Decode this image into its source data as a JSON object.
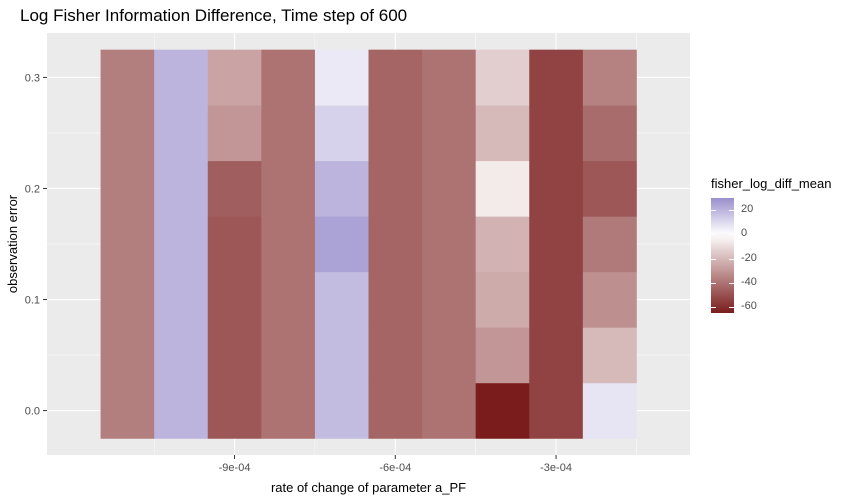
{
  "chart_data": {
    "type": "heatmap",
    "title": "Log Fisher Information Difference, Time step of 600",
    "xlabel": "rate of change of parameter a_PF",
    "ylabel": "observation error",
    "x_ticks": [
      {
        "value": -0.0009,
        "label": "-9e-04"
      },
      {
        "value": -0.0006,
        "label": "-6e-04"
      },
      {
        "value": -0.0003,
        "label": "-3e-04"
      }
    ],
    "y_ticks": [
      {
        "value": 0.0,
        "label": "0.0"
      },
      {
        "value": 0.1,
        "label": "0.1"
      },
      {
        "value": 0.2,
        "label": "0.2"
      },
      {
        "value": 0.3,
        "label": "0.3"
      }
    ],
    "xlim": [
      -0.00125,
      -5e-05
    ],
    "ylim": [
      -0.04,
      0.34
    ],
    "x": [
      -0.0011,
      -0.001,
      -0.0009,
      -0.0008,
      -0.0007,
      -0.0006,
      -0.0005,
      -0.0004,
      -0.0003,
      -0.0002
    ],
    "y": [
      0.0,
      0.05,
      0.1,
      0.15,
      0.2,
      0.25,
      0.3
    ],
    "values": [
      [
        -37,
        20,
        -48,
        -40,
        18,
        -44,
        -40,
        -68,
        -54,
        7
      ],
      [
        -37,
        20,
        -48,
        -40,
        18,
        -44,
        -40,
        -30,
        -54,
        -20
      ],
      [
        -37,
        20,
        -48,
        -40,
        18,
        -44,
        -40,
        -24,
        -54,
        -32
      ],
      [
        -37,
        20,
        -48,
        -40,
        25,
        -44,
        -40,
        -22,
        -54,
        -38
      ],
      [
        -37,
        20,
        -46,
        -40,
        20,
        -44,
        -40,
        -6,
        -54,
        -48
      ],
      [
        -37,
        20,
        -30,
        -40,
        12,
        -44,
        -40,
        -20,
        -54,
        -42
      ],
      [
        -37,
        20,
        -26,
        -40,
        6,
        -44,
        -40,
        -14,
        -54,
        -36
      ]
    ],
    "color_scale": {
      "name": "fisher_log_diff_mean",
      "low_color": "#7a1c1c",
      "mid_color": "#ffffff",
      "high_color": "#9a8fcc",
      "domain": [
        -65,
        30
      ],
      "breaks": [
        20,
        0,
        -20,
        -40,
        -60
      ],
      "break_labels": [
        "20",
        "0",
        "-20",
        "-40",
        "-60"
      ]
    },
    "panel_background": "#ebebeb",
    "grid": true,
    "legend_position": "right"
  }
}
